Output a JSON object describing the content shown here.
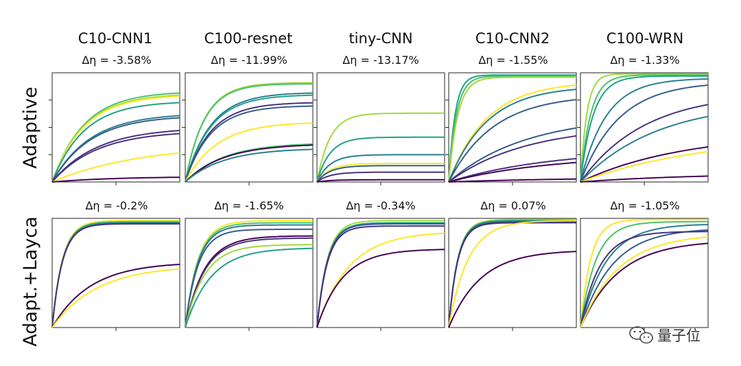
{
  "chart_data": {
    "type": "line",
    "description_note": "Grid of small-multiple line plots; curves normalized 0-1 over training progress",
    "columns": [
      {
        "title": "C10-CNN1",
        "delta_top": "Δη = -3.58%",
        "delta_bottom": "Δη = -0.2%"
      },
      {
        "title": "C100-resnet",
        "delta_top": "Δη = -11.99%",
        "delta_bottom": "Δη = -1.65%"
      },
      {
        "title": "tiny-CNN",
        "delta_top": "Δη = -13.17%",
        "delta_bottom": "Δη = -0.34%"
      },
      {
        "title": "C10-CNN2",
        "delta_top": "Δη = -1.55%",
        "delta_bottom": "Δη = 0.07%"
      },
      {
        "title": "C100-WRN",
        "delta_top": "Δη = -1.33%",
        "delta_bottom": "Δη = -1.05%"
      }
    ],
    "rows": [
      {
        "label": "Adaptive"
      },
      {
        "label": "Adapt.+Layca"
      }
    ],
    "xlim": [
      0,
      1
    ],
    "ylim": [
      0,
      1
    ],
    "colormap": [
      "#440154",
      "#46327e",
      "#365c8d",
      "#277f8e",
      "#1fa187",
      "#4ac16d",
      "#a0da39",
      "#fde725"
    ],
    "panels": [
      [
        {
          "curves": [
            {
              "ymax": 0.83,
              "k": 0.25,
              "c": 5
            },
            {
              "ymax": 0.81,
              "k": 0.25,
              "c": 6
            },
            {
              "ymax": 0.8,
              "k": 0.25,
              "c": 7
            },
            {
              "ymax": 0.74,
              "k": 0.25,
              "c": 4
            },
            {
              "ymax": 0.63,
              "k": 0.3,
              "c": 3
            },
            {
              "ymax": 0.61,
              "k": 0.3,
              "c": 2
            },
            {
              "ymax": 0.5,
              "k": 0.35,
              "c": 1
            },
            {
              "ymax": 0.47,
              "k": 0.35,
              "c": 1
            },
            {
              "ymax": 0.35,
              "k": 0.7,
              "c": 7
            },
            {
              "ymax": 0.05,
              "k": 0.5,
              "c": 0
            }
          ]
        },
        {
          "curves": [
            {
              "ymax": 0.91,
              "k": 0.15,
              "c": 6
            },
            {
              "ymax": 0.9,
              "k": 0.15,
              "c": 5
            },
            {
              "ymax": 0.82,
              "k": 0.2,
              "c": 3
            },
            {
              "ymax": 0.8,
              "k": 0.2,
              "c": 4
            },
            {
              "ymax": 0.73,
              "k": 0.2,
              "c": 1
            },
            {
              "ymax": 0.7,
              "k": 0.2,
              "c": 2
            },
            {
              "ymax": 0.55,
              "k": 0.25,
              "c": 7
            },
            {
              "ymax": 0.36,
              "k": 0.3,
              "c": 5
            },
            {
              "ymax": 0.35,
              "k": 0.3,
              "c": 0
            },
            {
              "ymax": 0.31,
              "k": 0.3,
              "c": 3
            }
          ]
        },
        {
          "curves": [
            {
              "ymax": 0.63,
              "k": 0.1,
              "c": 6
            },
            {
              "ymax": 0.41,
              "k": 0.1,
              "c": 4
            },
            {
              "ymax": 0.25,
              "k": 0.1,
              "c": 3
            },
            {
              "ymax": 0.17,
              "k": 0.1,
              "c": 7
            },
            {
              "ymax": 0.15,
              "k": 0.1,
              "c": 2
            },
            {
              "ymax": 0.09,
              "k": 0.1,
              "c": 1
            },
            {
              "ymax": 0.02,
              "k": 0.1,
              "c": 0
            }
          ]
        },
        {
          "curves": [
            {
              "ymax": 0.98,
              "k": 0.05,
              "c": 4
            },
            {
              "ymax": 0.97,
              "k": 0.06,
              "c": 5
            },
            {
              "ymax": 0.96,
              "k": 0.07,
              "c": 6
            },
            {
              "ymax": 0.92,
              "k": 0.3,
              "c": 7
            },
            {
              "ymax": 0.88,
              "k": 0.3,
              "c": 3
            },
            {
              "ymax": 0.8,
              "k": 0.35,
              "c": 2
            },
            {
              "ymax": 0.61,
              "k": 0.6,
              "c": 2
            },
            {
              "ymax": 0.52,
              "k": 0.6,
              "c": 1
            },
            {
              "ymax": 0.3,
              "k": 0.8,
              "c": 1
            },
            {
              "ymax": 0.25,
              "k": 0.8,
              "c": 0
            },
            {
              "ymax": 0.04,
              "k": 0.9,
              "c": 0
            }
          ]
        },
        {
          "curves": [
            {
              "ymax": 0.99,
              "k": 0.05,
              "c": 6
            },
            {
              "ymax": 0.98,
              "k": 0.08,
              "c": 5
            },
            {
              "ymax": 0.97,
              "k": 0.1,
              "c": 4
            },
            {
              "ymax": 0.95,
              "k": 0.2,
              "c": 3
            },
            {
              "ymax": 0.92,
              "k": 0.3,
              "c": 2
            },
            {
              "ymax": 0.82,
              "k": 0.5,
              "c": 1
            },
            {
              "ymax": 0.74,
              "k": 0.6,
              "c": 3
            },
            {
              "ymax": 0.45,
              "k": 0.8,
              "c": 0
            },
            {
              "ymax": 0.44,
              "k": 1.0,
              "c": 7
            },
            {
              "ymax": 0.08,
              "k": 0.9,
              "c": 0
            }
          ]
        }
      ],
      [
        {
          "curves": [
            {
              "ymax": 0.98,
              "k": 0.08,
              "c": 7
            },
            {
              "ymax": 0.97,
              "k": 0.08,
              "c": 5
            },
            {
              "ymax": 0.96,
              "k": 0.08,
              "c": 3
            },
            {
              "ymax": 0.95,
              "k": 0.08,
              "c": 1
            },
            {
              "ymax": 0.6,
              "k": 0.3,
              "c": 0
            },
            {
              "ymax": 0.57,
              "k": 0.35,
              "c": 7
            }
          ]
        },
        {
          "curves": [
            {
              "ymax": 0.98,
              "k": 0.1,
              "c": 7
            },
            {
              "ymax": 0.96,
              "k": 0.1,
              "c": 5
            },
            {
              "ymax": 0.94,
              "k": 0.1,
              "c": 3
            },
            {
              "ymax": 0.9,
              "k": 0.1,
              "c": 2
            },
            {
              "ymax": 0.84,
              "k": 0.15,
              "c": 0
            },
            {
              "ymax": 0.82,
              "k": 0.15,
              "c": 1
            },
            {
              "ymax": 0.76,
              "k": 0.15,
              "c": 6
            },
            {
              "ymax": 0.73,
              "k": 0.2,
              "c": 4
            }
          ]
        },
        {
          "curves": [
            {
              "ymax": 0.98,
              "k": 0.08,
              "c": 6
            },
            {
              "ymax": 0.96,
              "k": 0.08,
              "c": 4
            },
            {
              "ymax": 0.95,
              "k": 0.08,
              "c": 2
            },
            {
              "ymax": 0.93,
              "k": 0.08,
              "c": 1
            },
            {
              "ymax": 0.88,
              "k": 0.25,
              "c": 7
            },
            {
              "ymax": 0.72,
              "k": 0.2,
              "c": 0
            }
          ]
        },
        {
          "curves": [
            {
              "ymax": 0.99,
              "k": 0.07,
              "c": 6
            },
            {
              "ymax": 0.98,
              "k": 0.07,
              "c": 4
            },
            {
              "ymax": 0.97,
              "k": 0.07,
              "c": 2
            },
            {
              "ymax": 0.96,
              "k": 0.07,
              "c": 1
            },
            {
              "ymax": 0.98,
              "k": 0.15,
              "c": 7
            },
            {
              "ymax": 0.71,
              "k": 0.25,
              "c": 0
            }
          ]
        },
        {
          "curves": [
            {
              "ymax": 0.99,
              "k": 0.08,
              "c": 7
            },
            {
              "ymax": 0.97,
              "k": 0.12,
              "c": 5
            },
            {
              "ymax": 0.95,
              "k": 0.2,
              "c": 3
            },
            {
              "ymax": 0.91,
              "k": 0.25,
              "c": 2
            },
            {
              "ymax": 0.88,
              "k": 0.15,
              "c": 1
            },
            {
              "ymax": 0.8,
              "k": 0.3,
              "c": 0
            },
            {
              "ymax": 0.86,
              "k": 0.3,
              "c": 7
            }
          ]
        }
      ]
    ]
  },
  "watermark": {
    "text": "量子位",
    "icon": "wechat-icon"
  }
}
